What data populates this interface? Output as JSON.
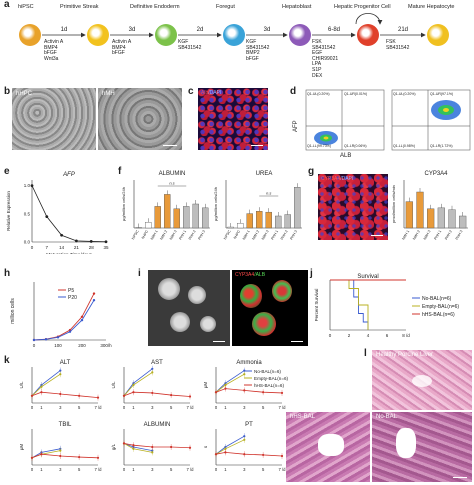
{
  "panel_a": {
    "letter": "a",
    "stages": [
      "hiPSC",
      "Primitive Streak",
      "Definitive Endoderm",
      "Foregut",
      "Hepatoblast",
      "Hepatic Progenitor Cell",
      "Mature Hepatocyte"
    ],
    "durations": [
      "1d",
      "3d",
      "2d",
      "3d",
      "6-8d",
      "21d"
    ],
    "factors": [
      "Activin A\nBMP4\nbFGF\nWnt3a",
      "Activin A\nBMP4\nbFGF",
      "KGF\nSB431542",
      "KGF\nSB431542\nBMP2\nbFGF",
      "FSK\nSB431542\nEGF\nCHIR99021\nLPA\nS1P\nDEX",
      "FSK\nSB431542"
    ],
    "cell_colors": [
      "#e8a22a",
      "#f2c21e",
      "#7cc24a",
      "#3aa3d8",
      "#8d5ab8",
      "#e0402a",
      "#f0c020"
    ]
  },
  "panel_b": {
    "letter": "b",
    "labels": [
      "hHPC",
      "hMH"
    ]
  },
  "panel_c": {
    "letter": "c",
    "stain_a": "Alb",
    "stain_b": "/DAPI"
  },
  "panel_d": {
    "letter": "d",
    "y_label": "AFP",
    "x_label": "ALB",
    "q1": {
      "ul": "Q1-UL(0.20%)",
      "ur": "Q1-UR(0.01%)",
      "ll": "Q1-LL(99.73%)",
      "lr": "Q1-LR(0.06%)"
    },
    "q2": {
      "ul": "Q1-UL(0.20%)",
      "ur": "Q1-UR(97.1%)",
      "ll": "Q1-LL(0.98%)",
      "lr": "Q1-LR(1.72%)"
    }
  },
  "panel_e": {
    "letter": "e",
    "title": "AFP",
    "ylabel": "Relative Expression",
    "xlabel": "Maturation Time/days",
    "xticks": [
      "0",
      "7",
      "14",
      "21",
      "28",
      "35"
    ],
    "yticks": [
      "0.0",
      "0.5",
      "1.0"
    ]
  },
  "panel_f": {
    "letter": "f",
    "title_1": "ALBUMIN",
    "title_2": "UREA",
    "ylabel_1": "μg/million cells/24h",
    "ylabel_2": "μg/million cells/24h",
    "ns": "n.s",
    "categories": [
      "hiPSC",
      "hHPC",
      "hMH 1",
      "hMH 2",
      "hMH 3",
      "PHH 1",
      "PHH 2",
      "PHH 3"
    ]
  },
  "panel_g": {
    "letter": "g",
    "stain_a": "CYP3A4",
    "stain_b": "/DAPI",
    "chart_title": "CYP3A4",
    "ylabel": "pmol/million cells/min",
    "categories": [
      "hMH 1",
      "hMH 2",
      "hMH 3",
      "PHH 1",
      "PHH 2",
      "PHH 3"
    ]
  },
  "panel_h": {
    "letter": "h",
    "ylabel": "million cells",
    "xticks": [
      "0",
      "100",
      "200",
      "300/h"
    ],
    "legend": [
      "P5",
      "P20"
    ]
  },
  "panel_i": {
    "letter": "i",
    "stain_a": "CYP3A4",
    "stain_b": "/ALB"
  },
  "panel_j": {
    "letter": "j",
    "title": "Survival",
    "ylabel": "Percent Survival",
    "xticks": [
      "0",
      "2",
      "4",
      "6",
      "8 /d"
    ],
    "legend": [
      "No-BAL(n=6)",
      "Empty-BAL(n=6)",
      "hHS-BAL(n=6)"
    ]
  },
  "panel_k": {
    "letter": "k",
    "titles": [
      "ALT",
      "AST",
      "Ammonia",
      "TBIL",
      "ALBUMIN",
      "PT"
    ],
    "units": [
      "U/L",
      "U/L",
      "μM",
      "μM",
      "g/L",
      "s"
    ],
    "xticks": [
      "0",
      "1",
      "3",
      "5",
      "7 /d"
    ],
    "legend": [
      "No-BAL(n=6)",
      "Empty-BAL(n=6)",
      "hHS-BAL(n=6)"
    ]
  },
  "panel_l": {
    "letter": "l",
    "labels": [
      "Healthy Porcine Liver",
      "hHS-BAL",
      "No-BAL"
    ]
  },
  "chart_data": [
    {
      "type": "line",
      "title": "AFP",
      "xlabel": "Maturation Time/days",
      "ylabel": "Relative Expression",
      "x": [
        0,
        7,
        14,
        21,
        28,
        35
      ],
      "values": [
        1.0,
        0.45,
        0.12,
        0.02,
        0.01,
        0.005
      ],
      "ylim": [
        0,
        1.1
      ]
    },
    {
      "type": "bar",
      "title": "ALBUMIN",
      "ylabel": "μg/million cells/24h",
      "categories": [
        "hiPSC",
        "hHPC",
        "hMH 1",
        "hMH 2",
        "hMH 3",
        "PHH 1",
        "PHH 2",
        "PHH 3"
      ],
      "values": [
        1,
        12,
        45,
        70,
        40,
        45,
        50,
        42
      ],
      "ylim": [
        0,
        100
      ]
    },
    {
      "type": "bar",
      "title": "UREA",
      "ylabel": "μg/million cells/24h",
      "categories": [
        "hiPSC",
        "hHPC",
        "hMH 1",
        "hMH 2",
        "hMH 3",
        "PHH 1",
        "PHH 2",
        "PHH 3"
      ],
      "values": [
        2,
        10,
        30,
        35,
        33,
        25,
        28,
        85
      ],
      "ylim": [
        0,
        100
      ]
    },
    {
      "type": "bar",
      "title": "CYP3A4",
      "ylabel": "pmol/million cells/min",
      "categories": [
        "hMH 1",
        "hMH 2",
        "hMH 3",
        "PHH 1",
        "PHH 2",
        "PHH 3"
      ],
      "values": [
        55,
        75,
        40,
        42,
        38,
        25
      ],
      "ylim": [
        0,
        100
      ]
    },
    {
      "type": "line",
      "ylabel": "million cells",
      "series": [
        {
          "name": "P5",
          "x": [
            0,
            50,
            100,
            150,
            200,
            250
          ],
          "values": [
            0,
            0.5,
            2,
            6,
            14,
            28
          ]
        },
        {
          "name": "P20",
          "x": [
            0,
            50,
            100,
            150,
            200,
            250
          ],
          "values": [
            0,
            0.4,
            1.6,
            5,
            12,
            24
          ]
        }
      ],
      "ylim": [
        0,
        35
      ]
    },
    {
      "type": "line",
      "title": "Survival",
      "ylabel": "Percent Survival",
      "series": [
        {
          "name": "No-BAL(n=6)",
          "x": [
            0,
            2,
            2.5,
            3,
            3.5,
            4
          ],
          "values": [
            100,
            100,
            66,
            33,
            16,
            0
          ]
        },
        {
          "name": "Empty-BAL(n=6)",
          "x": [
            0,
            2,
            3,
            4
          ],
          "values": [
            100,
            83,
            50,
            0
          ]
        },
        {
          "name": "hHS-BAL(n=6)",
          "x": [
            0,
            8
          ],
          "values": [
            100,
            100
          ]
        }
      ],
      "ylim": [
        0,
        100
      ]
    }
  ]
}
